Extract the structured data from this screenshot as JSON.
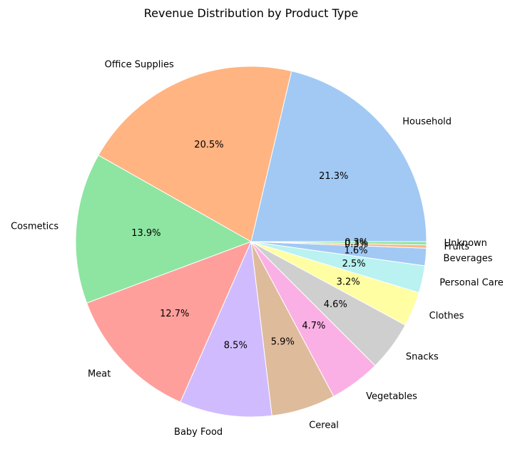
{
  "chart_data": {
    "type": "pie",
    "title": "Revenue Distribution by Product Type",
    "start_angle_deg": 0,
    "direction": "counterclockwise",
    "categories": [
      "Household",
      "Office Supplies",
      "Cosmetics",
      "Meat",
      "Baby Food",
      "Cereal",
      "Vegetables",
      "Snacks",
      "Clothes",
      "Personal Care",
      "Beverages",
      "Fruits",
      "Unknown"
    ],
    "values": [
      21.3,
      20.5,
      13.9,
      12.7,
      8.5,
      5.9,
      4.7,
      4.6,
      3.2,
      2.5,
      1.6,
      0.3,
      0.3
    ],
    "value_labels": [
      "21.3%",
      "20.5%",
      "13.9%",
      "12.7%",
      "8.5%",
      "5.9%",
      "4.7%",
      "4.6%",
      "3.2%",
      "2.5%",
      "1.6%",
      "0.3%",
      "0.3%"
    ],
    "colors": [
      "#a1c9f4",
      "#ffb482",
      "#8de5a1",
      "#ff9f9b",
      "#d0bbff",
      "#debb9b",
      "#fab0e4",
      "#cfcfcf",
      "#fffea3",
      "#b9f2f0",
      "#a1c9f4",
      "#ffb482",
      "#8de5a1"
    ]
  }
}
